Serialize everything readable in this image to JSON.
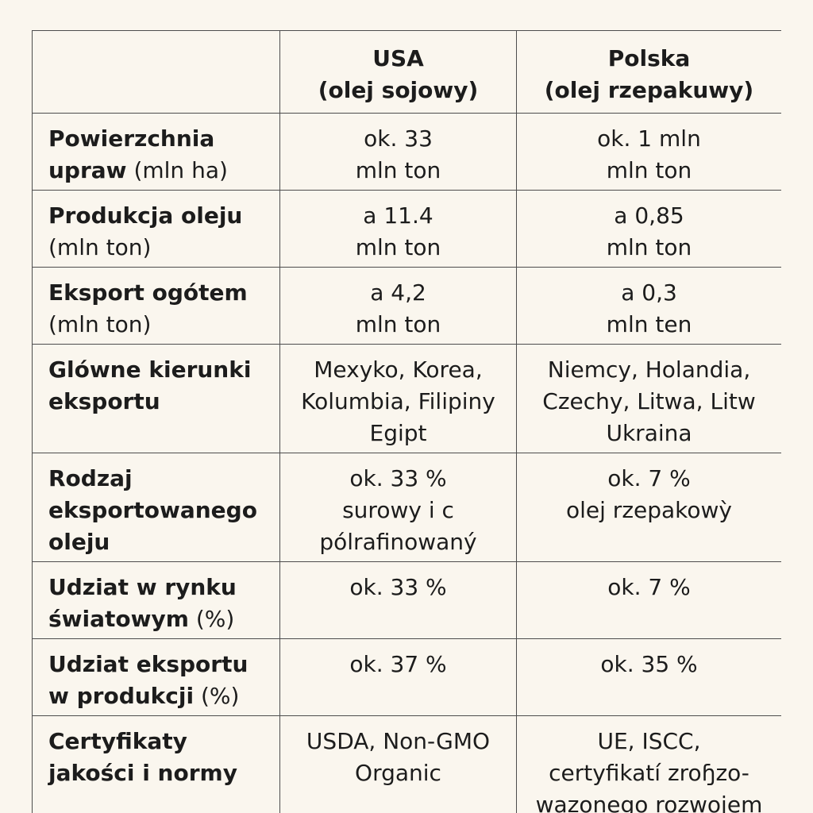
{
  "header": {
    "empty": "",
    "usa": "USA\n(olej sojowy)",
    "polska": "Polska\n(olej rzepakuwy)"
  },
  "rows": [
    {
      "label_bold": "Powierzchnia\nupraw",
      "label_normal": " (mln ha)",
      "usa": "ok. 33\nmln ton",
      "polska": "ok. 1 mln\nmln ton"
    },
    {
      "label_bold": "Produkcja oleju",
      "label_normal": "\n(mln ton)",
      "usa": "a 11.4\nmln ton",
      "polska": "a 0,85\nmln ton"
    },
    {
      "label_bold": "Eksport ogótem",
      "label_normal": "\n(mln ton)",
      "usa": "a 4,2\nmln ton",
      "polska": "a 0,3\nmln ten"
    },
    {
      "label_bold": "Glówne kierunki\neksportu",
      "label_normal": "",
      "usa": "Mexyko, Korea,\nKolumbia, Filipiny\nEgipt",
      "polska": "Niemcy, Holandia,\nCzechy, Litwa, Litw\nUkraina"
    },
    {
      "label_bold": "Rodzaj\neksportowanego\noleju",
      "label_normal": "",
      "usa": "ok. 33 %\nsurowy i c\npólrafinowaný",
      "polska": "ok. 7 %\nolej rzepakowỳ"
    },
    {
      "label_bold": "Udziat w rynku\nświatowym",
      "label_normal": " (%)",
      "usa": "ok. 33 %",
      "polska": "ok. 7 %"
    },
    {
      "label_bold": "Udziat eksportu\nw produkcji",
      "label_normal": " (%)",
      "usa": "ok. 37 %",
      "polska": "ok. 35 %"
    },
    {
      "label_bold": "Certyfikaty\njakości i normy",
      "label_normal": "",
      "usa": "USDA, Non-GMO\nOrganic",
      "polska": "UE, ISCC,\ncertyfikatí zroɧzo-\nwazonego rozwojem"
    }
  ]
}
